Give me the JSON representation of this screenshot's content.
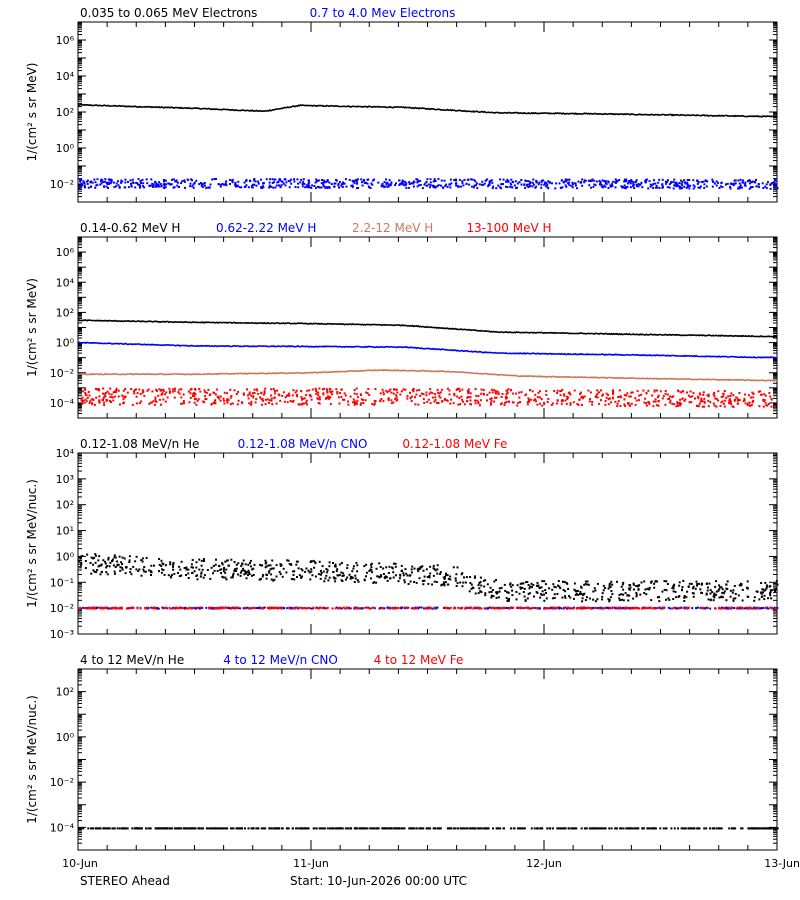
{
  "colors": {
    "black": "#000000",
    "blue": "#0000ff",
    "tan": "#c87a5a",
    "red": "#ff0000"
  },
  "footer": {
    "spacecraft": "STEREO Ahead",
    "start": "Start: 10-Jun-2026 00:00 UTC"
  },
  "chart_data": [
    {
      "type": "scatter",
      "title_legend": [
        "0.035 to 0.065 MeV Electrons",
        "0.7 to 4.0 Mev Electrons"
      ],
      "ylabel": "1/(cm² s sr MeV)",
      "yscale": "log",
      "ylim_exp": [
        -3,
        7
      ],
      "ytick_exps": [
        -2,
        0,
        2,
        4,
        6
      ],
      "ytick_style": "power",
      "xticks": [
        "10-Jun",
        "11-Jun",
        "12-Jun",
        "13-Jun"
      ],
      "xlim_days": [
        0,
        3
      ],
      "series": [
        {
          "color": "black",
          "style": "line",
          "points": [
            [
              0,
              250
            ],
            [
              0.5,
              160
            ],
            [
              0.8,
              110
            ],
            [
              0.95,
              230
            ],
            [
              1.4,
              180
            ],
            [
              1.8,
              90
            ],
            [
              2.2,
              80
            ],
            [
              3.0,
              55
            ]
          ]
        },
        {
          "color": "blue",
          "style": "scatter",
          "points": [
            [
              0,
              0.012
            ],
            [
              1.5,
              0.012
            ],
            [
              3.0,
              0.011
            ]
          ],
          "spread": 1.8
        }
      ]
    },
    {
      "type": "scatter",
      "title_legend": [
        "0.14-0.62 MeV H",
        "0.62-2.22 MeV H",
        "2.2-12 MeV H",
        "13-100 MeV H"
      ],
      "ylabel": "1/(cm² s sr MeV)",
      "yscale": "log",
      "ylim_exp": [
        -5,
        7
      ],
      "ytick_exps": [
        -4,
        -2,
        0,
        2,
        4,
        6
      ],
      "ytick_style": "power",
      "xticks": [
        "10-Jun",
        "11-Jun",
        "12-Jun",
        "13-Jun"
      ],
      "xlim_days": [
        0,
        3
      ],
      "series": [
        {
          "color": "black",
          "style": "line",
          "points": [
            [
              0,
              30
            ],
            [
              0.5,
              22
            ],
            [
              1.0,
              18
            ],
            [
              1.4,
              14
            ],
            [
              1.8,
              5
            ],
            [
              2.4,
              3.5
            ],
            [
              3.0,
              2.5
            ]
          ]
        },
        {
          "color": "blue",
          "style": "line",
          "points": [
            [
              0,
              1.0
            ],
            [
              0.5,
              0.6
            ],
            [
              1.0,
              0.55
            ],
            [
              1.4,
              0.5
            ],
            [
              1.8,
              0.2
            ],
            [
              2.4,
              0.15
            ],
            [
              3.0,
              0.1
            ]
          ]
        },
        {
          "color": "tan",
          "style": "line",
          "points": [
            [
              0,
              0.008
            ],
            [
              0.5,
              0.008
            ],
            [
              1.0,
              0.01
            ],
            [
              1.3,
              0.015
            ],
            [
              1.6,
              0.012
            ],
            [
              1.9,
              0.006
            ],
            [
              2.5,
              0.004
            ],
            [
              3.0,
              0.003
            ]
          ]
        },
        {
          "color": "red",
          "style": "scatter",
          "points": [
            [
              0,
              0.0003
            ],
            [
              1.5,
              0.0003
            ],
            [
              3.0,
              0.0002
            ]
          ],
          "spread": 3.5
        }
      ]
    },
    {
      "type": "scatter",
      "title_legend": [
        "0.12-1.08 MeV/n He",
        "0.12-1.08 MeV/n CNO",
        "0.12-1.08 MeV Fe"
      ],
      "ylabel": "1/(cm² s sr MeV/nuc.)",
      "yscale": "log",
      "ylim_exp": [
        -3,
        4
      ],
      "ytick_exps": [
        -3,
        -2,
        -1,
        0,
        1,
        2,
        3,
        4
      ],
      "ytick_style": "mixed",
      "xticks": [
        "10-Jun",
        "11-Jun",
        "12-Jun",
        "13-Jun"
      ],
      "xlim_days": [
        0,
        3
      ],
      "series": [
        {
          "color": "black",
          "style": "scatter",
          "points": [
            [
              0,
              0.6
            ],
            [
              0.5,
              0.35
            ],
            [
              1.0,
              0.3
            ],
            [
              1.6,
              0.2
            ],
            [
              1.8,
              0.05
            ],
            [
              2.5,
              0.05
            ],
            [
              3.0,
              0.05
            ]
          ],
          "spread": 2.5
        },
        {
          "color": "blue",
          "style": "scatter",
          "points": [
            [
              0,
              0.011
            ],
            [
              3.0,
              0.011
            ]
          ],
          "spread": 1.05
        },
        {
          "color": "red",
          "style": "scatter",
          "points": [
            [
              0,
              0.011
            ],
            [
              3.0,
              0.011
            ]
          ],
          "spread": 1.05
        }
      ]
    },
    {
      "type": "scatter",
      "title_legend": [
        "4 to 12 MeV/n He",
        "4 to 12 MeV/n CNO",
        "4 to 12 MeV Fe"
      ],
      "ylabel": "1/(cm² s sr MeV/nuc.)",
      "yscale": "log",
      "ylim_exp": [
        -5,
        3
      ],
      "ytick_exps": [
        -4,
        -2,
        0,
        2
      ],
      "ytick_style": "power",
      "xticks": [
        "10-Jun",
        "11-Jun",
        "12-Jun",
        "13-Jun"
      ],
      "xlim_days": [
        0,
        3
      ],
      "series": [
        {
          "color": "black",
          "style": "scatter",
          "points": [
            [
              0,
              0.0001
            ],
            [
              3.0,
              0.0001
            ]
          ],
          "spread": 1.0
        }
      ]
    }
  ]
}
